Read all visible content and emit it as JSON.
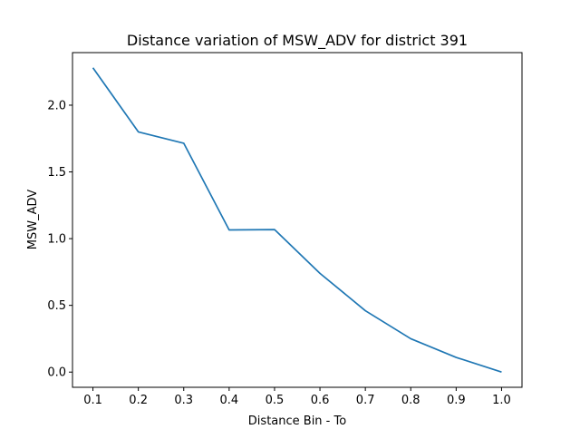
{
  "chart_data": {
    "type": "line",
    "title": "Distance variation of MSW_ADV for district 391",
    "xlabel": "Distance Bin - To",
    "ylabel": "MSW_ADV",
    "x": [
      0.1,
      0.2,
      0.3,
      0.4,
      0.5,
      0.6,
      0.7,
      0.8,
      0.9,
      1.0
    ],
    "series": [
      {
        "values": [
          2.28,
          1.8,
          1.715,
          1.065,
          1.068,
          0.74,
          0.46,
          0.25,
          0.11,
          0.0
        ],
        "color": "#1f77b4"
      }
    ],
    "xticks": [
      "0.1",
      "0.2",
      "0.3",
      "0.4",
      "0.5",
      "0.6",
      "0.7",
      "0.8",
      "0.9",
      "1.0"
    ],
    "yticks": [
      "0.0",
      "0.5",
      "1.0",
      "1.5",
      "2.0"
    ],
    "xlim": [
      0.055,
      1.045
    ],
    "ylim": [
      -0.114,
      2.394
    ],
    "grid": false,
    "legend": false
  }
}
